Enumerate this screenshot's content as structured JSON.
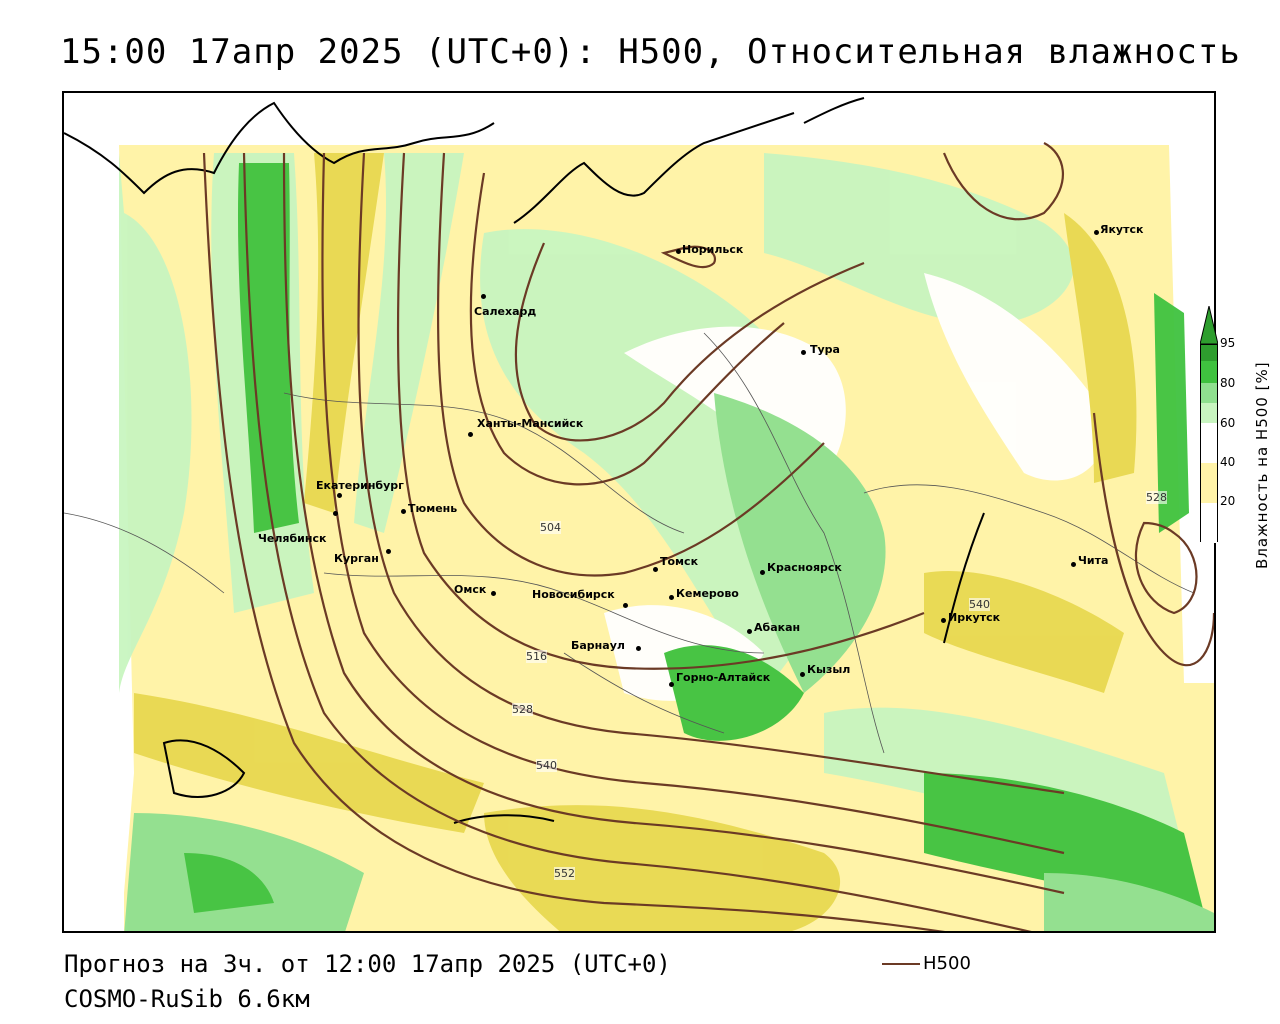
{
  "title": "15:00 17апр 2025 (UTC+0): H500, Относительная влажность",
  "footer": {
    "forecast": "Прогноз на 3ч. от 12:00 17апр 2025 (UTC+0)",
    "model": "COSMO-RuSib 6.6км"
  },
  "legend": {
    "line_label": "H500",
    "line_color": "#6b3a25"
  },
  "colorbar": {
    "title": "Влажность на H500 [%]",
    "ticks": [
      "95",
      "80",
      "60",
      "40",
      "20"
    ],
    "colors": [
      "#2e9e2e",
      "#3fc23f",
      "#8fe08f",
      "#c8f5c0",
      "#ffffff",
      "#fff3a8",
      "#e8d850",
      "#d4c030"
    ]
  },
  "cities": [
    {
      "name": "Норильск"
    },
    {
      "name": "Якутск"
    },
    {
      "name": "Салехард"
    },
    {
      "name": "Тура"
    },
    {
      "name": "Ханты-Мансийск"
    },
    {
      "name": "Екатеринбург"
    },
    {
      "name": "Тюмень"
    },
    {
      "name": "Челябинск"
    },
    {
      "name": "Курган"
    },
    {
      "name": "Омск"
    },
    {
      "name": "Новосибирск"
    },
    {
      "name": "Томск"
    },
    {
      "name": "Кемерово"
    },
    {
      "name": "Красноярск"
    },
    {
      "name": "Абакан"
    },
    {
      "name": "Барнаул"
    },
    {
      "name": "Горно-Алтайск"
    },
    {
      "name": "Кызыл"
    },
    {
      "name": "Иркутск"
    },
    {
      "name": "Чита"
    }
  ],
  "contour_labels": [
    "504",
    "516",
    "528",
    "540",
    "552",
    "540",
    "528"
  ]
}
